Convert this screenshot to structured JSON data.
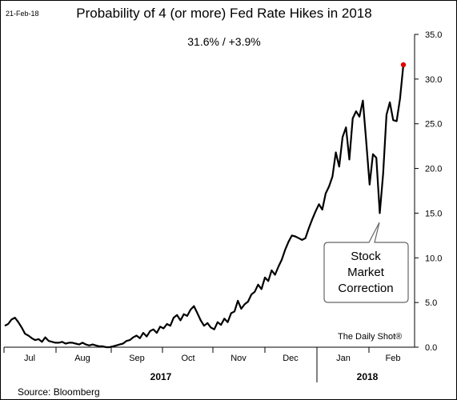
{
  "date_label": "21-Feb-18",
  "chart_data": {
    "type": "line",
    "title": "Probability of 4 (or more) Fed Rate Hikes in 2018",
    "subtitle": "31.6%  /  +3.9%",
    "source": "Source: Bloomberg",
    "credit": "The Daily Shot®",
    "annotation": [
      "Stock",
      "Market",
      "Correction"
    ],
    "y_axis": {
      "side": "right",
      "ylim": [
        0,
        35
      ],
      "ticks": [
        "0.0",
        "5.0",
        "10.0",
        "15.0",
        "20.0",
        "25.0",
        "30.0",
        "35.0"
      ]
    },
    "x_axis": {
      "month_labels": [
        "Jul",
        "Aug",
        "Sep",
        "Oct",
        "Nov",
        "Dec",
        "Jan",
        "Feb"
      ],
      "year_labels": [
        "2017",
        "2018"
      ]
    },
    "series": [
      {
        "color": "#000000",
        "end_marker_color": "#e00000",
        "values": [
          2.4,
          2.6,
          3.1,
          3.3,
          2.8,
          2.2,
          1.5,
          1.3,
          1.0,
          0.8,
          0.9,
          0.6,
          1.1,
          0.7,
          0.6,
          0.5,
          0.5,
          0.6,
          0.4,
          0.5,
          0.5,
          0.4,
          0.3,
          0.5,
          0.3,
          0.2,
          0.3,
          0.2,
          0.1,
          0.1,
          0.0,
          0.0,
          0.1,
          0.2,
          0.3,
          0.4,
          0.7,
          0.8,
          1.1,
          1.3,
          1.0,
          1.6,
          1.2,
          1.8,
          2.0,
          1.6,
          2.3,
          2.1,
          2.6,
          2.4,
          3.3,
          3.6,
          3.0,
          3.7,
          3.5,
          4.2,
          4.6,
          3.8,
          3.0,
          2.4,
          2.7,
          2.2,
          2.0,
          2.8,
          2.5,
          3.2,
          2.8,
          3.8,
          4.0,
          5.2,
          4.3,
          4.8,
          5.1,
          5.9,
          6.2,
          7.0,
          6.5,
          7.8,
          7.4,
          8.6,
          8.1,
          9.0,
          9.8,
          10.9,
          11.8,
          12.5,
          12.4,
          12.2,
          12.0,
          12.2,
          13.3,
          14.3,
          15.2,
          16.0,
          15.4,
          17.2,
          18.0,
          19.1,
          21.8,
          20.2,
          23.5,
          24.6,
          21.0,
          25.6,
          26.4,
          25.8,
          27.6,
          23.0,
          18.2,
          21.6,
          21.2,
          15.0,
          19.4,
          26.0,
          27.4,
          25.4,
          25.3,
          27.8,
          31.6
        ]
      }
    ]
  }
}
